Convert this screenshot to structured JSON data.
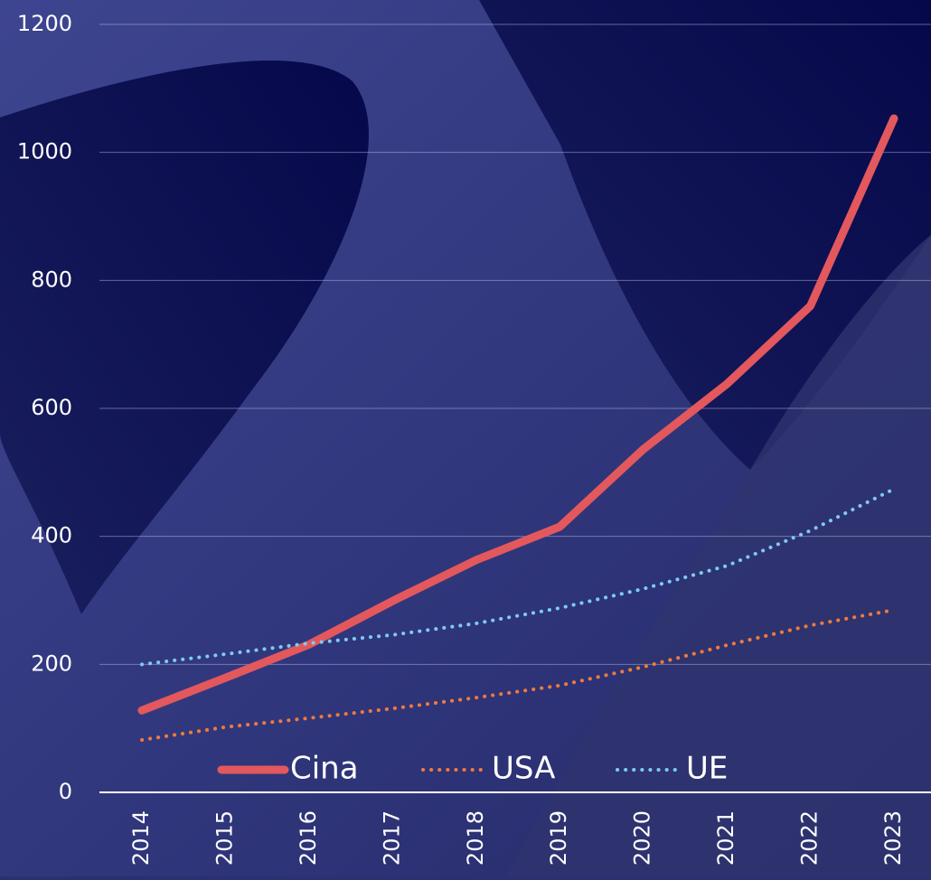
{
  "chart_data": {
    "type": "line",
    "x": [
      "2014",
      "2015",
      "2016",
      "2017",
      "2018",
      "2019",
      "2020",
      "2021",
      "2022",
      "2023"
    ],
    "series": [
      {
        "name": "Cina",
        "color": "#e2585d",
        "style": "solid",
        "values": [
          128,
          179,
          231,
          299,
          363,
          415,
          536,
          638,
          760,
          1053
        ]
      },
      {
        "name": "USA",
        "color": "#ef7a3e",
        "style": "dotted",
        "values": [
          82,
          102,
          116,
          131,
          148,
          167,
          196,
          230,
          261,
          285
        ]
      },
      {
        "name": "UE",
        "color": "#7fcaf2",
        "style": "dotted",
        "values": [
          200,
          216,
          233,
          246,
          264,
          288,
          318,
          354,
          409,
          474
        ]
      }
    ],
    "ylim": [
      0,
      1200
    ],
    "yticks": [
      0,
      200,
      400,
      600,
      800,
      1000,
      1200
    ],
    "grid": true,
    "legend": "bottom"
  }
}
